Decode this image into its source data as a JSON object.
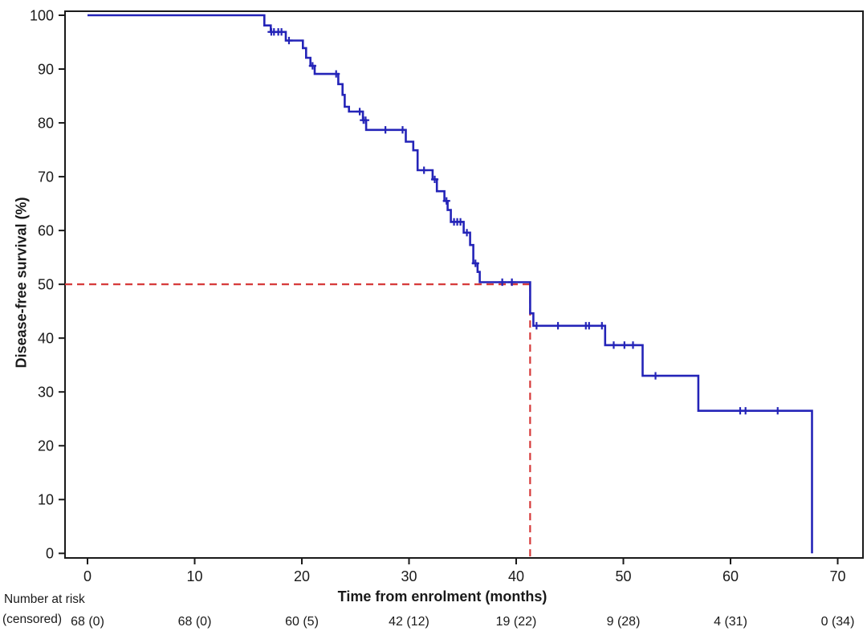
{
  "figure": {
    "kind": "kaplan-meier-survival-plot",
    "background_color": "#ffffff",
    "axis_color": "#1a1a1a"
  },
  "chart_data": {
    "type": "line",
    "subtype": "kaplan-meier-step",
    "title": "",
    "xlabel": "Time from enrolment (months)",
    "ylabel": "Disease-free survival (%)",
    "xlim": [
      0,
      70
    ],
    "ylim": [
      0,
      100
    ],
    "x_ticks": [
      0,
      10,
      20,
      30,
      40,
      50,
      60,
      70
    ],
    "y_ticks": [
      0,
      10,
      20,
      30,
      40,
      50,
      60,
      70,
      80,
      90,
      100
    ],
    "grid": false,
    "legend": "none",
    "series": [
      {
        "name": "Disease-free survival",
        "color": "#2424b8",
        "step_points": [
          [
            0,
            100
          ],
          [
            16.5,
            100
          ],
          [
            16.5,
            98.1
          ],
          [
            17.1,
            98.1
          ],
          [
            17.1,
            96.9
          ],
          [
            18.5,
            96.9
          ],
          [
            18.5,
            95.3
          ],
          [
            20.1,
            95.3
          ],
          [
            20.1,
            93.9
          ],
          [
            20.4,
            93.9
          ],
          [
            20.4,
            92.1
          ],
          [
            20.8,
            92.1
          ],
          [
            20.8,
            90.6
          ],
          [
            21.2,
            90.6
          ],
          [
            21.2,
            89.1
          ],
          [
            23.4,
            89.1
          ],
          [
            23.4,
            87.2
          ],
          [
            23.8,
            87.2
          ],
          [
            23.8,
            85.2
          ],
          [
            24.0,
            85.2
          ],
          [
            24.0,
            83.0
          ],
          [
            24.4,
            83.0
          ],
          [
            24.4,
            82.1
          ],
          [
            25.7,
            82.1
          ],
          [
            25.7,
            80.5
          ],
          [
            26.0,
            80.5
          ],
          [
            26.0,
            78.7
          ],
          [
            29.7,
            78.7
          ],
          [
            29.7,
            76.5
          ],
          [
            30.4,
            76.5
          ],
          [
            30.4,
            74.9
          ],
          [
            30.8,
            74.9
          ],
          [
            30.8,
            71.2
          ],
          [
            32.2,
            71.2
          ],
          [
            32.2,
            69.5
          ],
          [
            32.6,
            69.5
          ],
          [
            32.6,
            67.3
          ],
          [
            33.3,
            67.3
          ],
          [
            33.3,
            65.5
          ],
          [
            33.6,
            65.5
          ],
          [
            33.6,
            63.8
          ],
          [
            33.9,
            63.8
          ],
          [
            33.9,
            61.6
          ],
          [
            35.1,
            61.6
          ],
          [
            35.1,
            59.6
          ],
          [
            35.7,
            59.6
          ],
          [
            35.7,
            57.3
          ],
          [
            36.0,
            57.3
          ],
          [
            36.0,
            53.9
          ],
          [
            36.4,
            53.9
          ],
          [
            36.4,
            52.3
          ],
          [
            36.6,
            52.3
          ],
          [
            36.6,
            50.4
          ],
          [
            41.3,
            50.4
          ],
          [
            41.3,
            44.6
          ],
          [
            41.6,
            44.6
          ],
          [
            41.6,
            42.3
          ],
          [
            48.3,
            42.3
          ],
          [
            48.3,
            38.7
          ],
          [
            51.8,
            38.7
          ],
          [
            51.8,
            33.0
          ],
          [
            57.0,
            33.0
          ],
          [
            57.0,
            26.5
          ],
          [
            67.6,
            26.5
          ],
          [
            67.6,
            0
          ]
        ],
        "censor_marks": [
          [
            17.15,
            96.9
          ],
          [
            17.4,
            96.9
          ],
          [
            17.8,
            96.9
          ],
          [
            18.1,
            96.9
          ],
          [
            18.8,
            95.3
          ],
          [
            21.0,
            90.6
          ],
          [
            23.2,
            89.1
          ],
          [
            25.4,
            82.1
          ],
          [
            25.75,
            80.5
          ],
          [
            25.95,
            80.5
          ],
          [
            27.8,
            78.7
          ],
          [
            29.4,
            78.7
          ],
          [
            31.4,
            71.2
          ],
          [
            32.4,
            69.5
          ],
          [
            33.5,
            65.5
          ],
          [
            34.2,
            61.6
          ],
          [
            34.5,
            61.6
          ],
          [
            34.8,
            61.6
          ],
          [
            35.4,
            59.6
          ],
          [
            36.2,
            53.9
          ],
          [
            38.7,
            50.4
          ],
          [
            39.6,
            50.4
          ],
          [
            41.9,
            42.3
          ],
          [
            43.9,
            42.3
          ],
          [
            46.5,
            42.3
          ],
          [
            46.8,
            42.3
          ],
          [
            48.0,
            42.3
          ],
          [
            49.1,
            38.7
          ],
          [
            50.1,
            38.7
          ],
          [
            50.9,
            38.7
          ],
          [
            53.0,
            33.0
          ],
          [
            60.9,
            26.5
          ],
          [
            61.4,
            26.5
          ],
          [
            64.4,
            26.5
          ]
        ]
      }
    ],
    "median_line": {
      "time_months": 41.3,
      "survival_pct": 50,
      "color": "#d63a3a",
      "style": "dashed"
    },
    "number_at_risk": {
      "header": "Number at risk",
      "subheader": "(censored)",
      "times": [
        0,
        10,
        20,
        30,
        40,
        50,
        60,
        70
      ],
      "labels": [
        "68 (0)",
        "68 (0)",
        "60 (5)",
        "42 (12)",
        "19 (22)",
        "9 (28)",
        "4 (31)",
        "0 (34)"
      ]
    }
  }
}
